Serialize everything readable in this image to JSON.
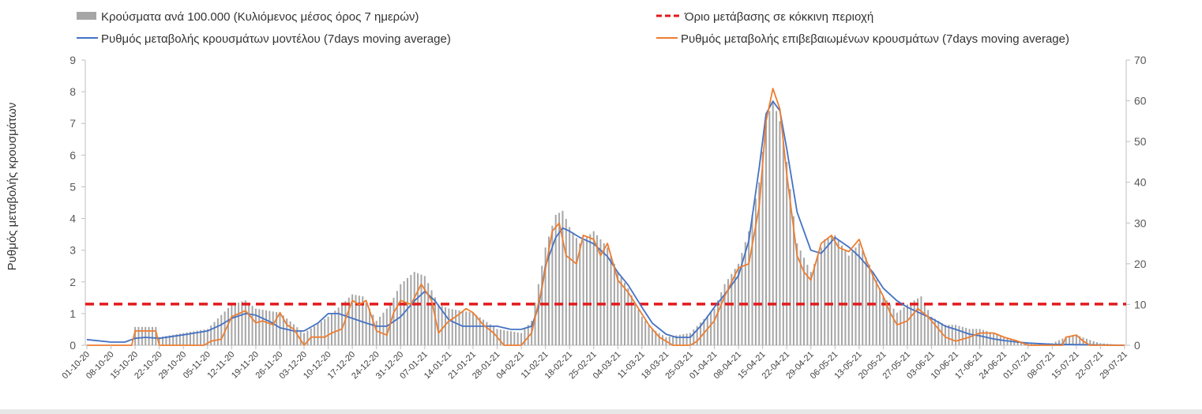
{
  "chart_data": {
    "type": "bar+line",
    "title": "",
    "ylabel_left": "Ρυθμός μεταβολής κρουσμάτων",
    "ylabel_right": "",
    "ylim_left": [
      0,
      9
    ],
    "ylim_right": [
      0,
      70
    ],
    "yticks_left": [
      "0",
      "1",
      "2",
      "3",
      "4",
      "5",
      "6",
      "7",
      "8",
      "9"
    ],
    "yticks_right": [
      "0",
      "10",
      "20",
      "30",
      "40",
      "50",
      "60",
      "70"
    ],
    "x_range": [
      "01-10-20",
      "29-07-21"
    ],
    "xticks": [
      "01-10-20",
      "08-10-20",
      "15-10-20",
      "22-10-20",
      "29-10-20",
      "05-11-20",
      "12-11-20",
      "19-11-20",
      "26-11-20",
      "03-12-20",
      "10-12-20",
      "17-12-20",
      "24-12-20",
      "31-12-20",
      "07-01-21",
      "14-01-21",
      "21-01-21",
      "28-01-21",
      "04-02-21",
      "11-02-21",
      "18-02-21",
      "25-02-21",
      "04-03-21",
      "11-03-21",
      "18-03-21",
      "25-03-21",
      "01-04-21",
      "08-04-21",
      "15-04-21",
      "22-04-21",
      "29-04-21",
      "06-05-21",
      "13-05-21",
      "20-05-21",
      "27-05-21",
      "03-06-21",
      "10-06-21",
      "17-06-21",
      "24-06-21",
      "01-07-21",
      "08-07-21",
      "15-07-21",
      "22-07-21",
      "29-07-21"
    ],
    "legend_position": "top",
    "grid": false,
    "series": [
      {
        "name": "Κρούσματα ανά 100.000 (Κυλιόμενος μέσος όρος 7 ημερών)",
        "kind": "bar",
        "axis": "right",
        "color": "#a6a6a6",
        "points": [
          [
            "01-10-20",
            0
          ],
          [
            "08-10-20",
            0
          ],
          [
            "14-10-20",
            0
          ],
          [
            "15-10-20",
            4.5
          ],
          [
            "21-10-20",
            4.5
          ],
          [
            "22-10-20",
            2
          ],
          [
            "29-10-20",
            3
          ],
          [
            "05-11-20",
            4
          ],
          [
            "12-11-20",
            10
          ],
          [
            "16-11-20",
            11
          ],
          [
            "19-11-20",
            9
          ],
          [
            "26-11-20",
            8
          ],
          [
            "03-12-20",
            3
          ],
          [
            "10-12-20",
            7
          ],
          [
            "14-12-20",
            10
          ],
          [
            "17-12-20",
            12.5
          ],
          [
            "20-12-20",
            12
          ],
          [
            "24-12-20",
            6
          ],
          [
            "28-12-20",
            10
          ],
          [
            "31-12-20",
            15
          ],
          [
            "04-01-21",
            18
          ],
          [
            "07-01-21",
            17
          ],
          [
            "11-01-21",
            10
          ],
          [
            "14-01-21",
            9
          ],
          [
            "21-01-21",
            8
          ],
          [
            "28-01-21",
            4
          ],
          [
            "04-02-21",
            3
          ],
          [
            "07-02-21",
            6
          ],
          [
            "11-02-21",
            24
          ],
          [
            "14-02-21",
            32
          ],
          [
            "16-02-21",
            33
          ],
          [
            "18-02-21",
            29
          ],
          [
            "21-02-21",
            25
          ],
          [
            "25-02-21",
            28
          ],
          [
            "01-03-21",
            24
          ],
          [
            "04-03-21",
            18
          ],
          [
            "07-03-21",
            14
          ],
          [
            "11-03-21",
            7
          ],
          [
            "14-03-21",
            4
          ],
          [
            "18-03-21",
            2
          ],
          [
            "25-03-21",
            3
          ],
          [
            "01-04-21",
            9
          ],
          [
            "04-04-21",
            15
          ],
          [
            "08-04-21",
            20
          ],
          [
            "11-04-21",
            28
          ],
          [
            "14-04-21",
            40
          ],
          [
            "16-04-21",
            55
          ],
          [
            "18-04-21",
            60
          ],
          [
            "20-04-21",
            55
          ],
          [
            "22-04-21",
            45
          ],
          [
            "25-04-21",
            25
          ],
          [
            "29-04-21",
            18
          ],
          [
            "03-05-21",
            26
          ],
          [
            "06-05-21",
            27
          ],
          [
            "10-05-21",
            22
          ],
          [
            "13-05-21",
            25
          ],
          [
            "17-05-21",
            18
          ],
          [
            "20-05-21",
            12
          ],
          [
            "24-05-21",
            8
          ],
          [
            "27-05-21",
            10
          ],
          [
            "31-05-21",
            12
          ],
          [
            "03-06-21",
            7
          ],
          [
            "07-06-21",
            5
          ],
          [
            "10-06-21",
            5
          ],
          [
            "14-06-21",
            4
          ],
          [
            "17-06-21",
            4
          ],
          [
            "21-06-21",
            3
          ],
          [
            "24-06-21",
            2
          ],
          [
            "01-07-21",
            0.5
          ],
          [
            "08-07-21",
            0.5
          ],
          [
            "12-07-21",
            2
          ],
          [
            "15-07-21",
            2.5
          ],
          [
            "20-07-21",
            1
          ],
          [
            "22-07-21",
            0.5
          ],
          [
            "29-07-21",
            0
          ]
        ]
      },
      {
        "name": "Όριο μετάβασης σε κόκκινη περιοχή",
        "kind": "hline",
        "axis": "left",
        "color": "#e31a1c",
        "value": 1.3
      },
      {
        "name": "Ρυθμός μεταβολής κρουσμάτων μοντέλου (7days moving average)",
        "kind": "line",
        "axis": "left",
        "color": "#4472c4",
        "points": [
          [
            "01-10-20",
            0.18
          ],
          [
            "08-10-20",
            0.1
          ],
          [
            "12-10-20",
            0.1
          ],
          [
            "15-10-20",
            0.22
          ],
          [
            "18-10-20",
            0.25
          ],
          [
            "22-10-20",
            0.22
          ],
          [
            "29-10-20",
            0.33
          ],
          [
            "02-11-20",
            0.4
          ],
          [
            "05-11-20",
            0.45
          ],
          [
            "09-11-20",
            0.65
          ],
          [
            "12-11-20",
            0.85
          ],
          [
            "16-11-20",
            1.0
          ],
          [
            "19-11-20",
            0.95
          ],
          [
            "23-11-20",
            0.75
          ],
          [
            "26-11-20",
            0.55
          ],
          [
            "30-11-20",
            0.45
          ],
          [
            "03-12-20",
            0.45
          ],
          [
            "07-12-20",
            0.7
          ],
          [
            "10-12-20",
            1.0
          ],
          [
            "13-12-20",
            1.0
          ],
          [
            "17-12-20",
            0.85
          ],
          [
            "21-12-20",
            0.7
          ],
          [
            "24-12-20",
            0.6
          ],
          [
            "27-12-20",
            0.6
          ],
          [
            "31-12-20",
            0.9
          ],
          [
            "04-01-21",
            1.4
          ],
          [
            "07-01-21",
            1.7
          ],
          [
            "10-01-21",
            1.4
          ],
          [
            "14-01-21",
            0.8
          ],
          [
            "18-01-21",
            0.6
          ],
          [
            "21-01-21",
            0.6
          ],
          [
            "25-01-21",
            0.6
          ],
          [
            "28-01-21",
            0.6
          ],
          [
            "01-02-21",
            0.5
          ],
          [
            "04-02-21",
            0.5
          ],
          [
            "07-02-21",
            0.6
          ],
          [
            "09-02-21",
            1.2
          ],
          [
            "11-02-21",
            2.5
          ],
          [
            "14-02-21",
            3.4
          ],
          [
            "16-02-21",
            3.7
          ],
          [
            "18-02-21",
            3.6
          ],
          [
            "21-02-21",
            3.4
          ],
          [
            "25-02-21",
            3.2
          ],
          [
            "01-03-21",
            2.8
          ],
          [
            "04-03-21",
            2.3
          ],
          [
            "07-03-21",
            1.9
          ],
          [
            "11-03-21",
            1.2
          ],
          [
            "14-03-21",
            0.7
          ],
          [
            "18-03-21",
            0.35
          ],
          [
            "21-03-21",
            0.25
          ],
          [
            "25-03-21",
            0.25
          ],
          [
            "28-03-21",
            0.6
          ],
          [
            "01-04-21",
            1.2
          ],
          [
            "04-04-21",
            1.6
          ],
          [
            "08-04-21",
            2.2
          ],
          [
            "11-04-21",
            3.3
          ],
          [
            "14-04-21",
            5.6
          ],
          [
            "16-04-21",
            7.3
          ],
          [
            "18-04-21",
            7.7
          ],
          [
            "20-04-21",
            7.4
          ],
          [
            "22-04-21",
            6.2
          ],
          [
            "25-04-21",
            4.2
          ],
          [
            "29-04-21",
            3.0
          ],
          [
            "02-05-21",
            2.9
          ],
          [
            "06-05-21",
            3.4
          ],
          [
            "10-05-21",
            3.1
          ],
          [
            "13-05-21",
            2.8
          ],
          [
            "17-05-21",
            2.3
          ],
          [
            "20-05-21",
            1.8
          ],
          [
            "24-05-21",
            1.4
          ],
          [
            "27-05-21",
            1.2
          ],
          [
            "31-05-21",
            1.0
          ],
          [
            "03-06-21",
            0.85
          ],
          [
            "07-06-21",
            0.6
          ],
          [
            "10-06-21",
            0.5
          ],
          [
            "14-06-21",
            0.35
          ],
          [
            "17-06-21",
            0.3
          ],
          [
            "21-06-21",
            0.2
          ],
          [
            "24-06-21",
            0.15
          ],
          [
            "28-06-21",
            0.1
          ],
          [
            "01-07-21",
            0.07
          ],
          [
            "08-07-21",
            0.03
          ],
          [
            "15-07-21",
            0.02
          ],
          [
            "22-07-21",
            0.01
          ],
          [
            "29-07-21",
            0.0
          ]
        ]
      },
      {
        "name": "Ρυθμός μεταβολής επιβεβαιωμένων κρουσμάτων (7days moving average)",
        "kind": "line",
        "axis": "right",
        "color": "#ed7d31",
        "points": [
          [
            "01-10-20",
            0
          ],
          [
            "14-10-20",
            0
          ],
          [
            "15-10-20",
            3.5
          ],
          [
            "21-10-20",
            3.5
          ],
          [
            "22-10-20",
            0
          ],
          [
            "04-11-20",
            0
          ],
          [
            "06-11-20",
            1
          ],
          [
            "09-11-20",
            1.5
          ],
          [
            "12-11-20",
            7
          ],
          [
            "16-11-20",
            8.5
          ],
          [
            "19-11-20",
            5.5
          ],
          [
            "21-11-20",
            6
          ],
          [
            "24-11-20",
            5
          ],
          [
            "26-11-20",
            8
          ],
          [
            "28-11-20",
            5
          ],
          [
            "30-11-20",
            4
          ],
          [
            "03-12-20",
            0
          ],
          [
            "05-12-20",
            2
          ],
          [
            "09-12-20",
            2
          ],
          [
            "11-12-20",
            3
          ],
          [
            "14-12-20",
            4
          ],
          [
            "17-12-20",
            11
          ],
          [
            "19-12-20",
            10
          ],
          [
            "21-12-20",
            11
          ],
          [
            "24-12-20",
            3.5
          ],
          [
            "27-12-20",
            2.5
          ],
          [
            "29-12-20",
            8
          ],
          [
            "31-12-20",
            11
          ],
          [
            "03-01-21",
            10
          ],
          [
            "06-01-21",
            15
          ],
          [
            "09-01-21",
            11
          ],
          [
            "11-01-21",
            3
          ],
          [
            "14-01-21",
            6
          ],
          [
            "16-01-21",
            7
          ],
          [
            "19-01-21",
            9
          ],
          [
            "21-01-21",
            8
          ],
          [
            "24-01-21",
            5
          ],
          [
            "27-01-21",
            3
          ],
          [
            "30-01-21",
            0
          ],
          [
            "04-02-21",
            0
          ],
          [
            "07-02-21",
            3
          ],
          [
            "10-02-21",
            14
          ],
          [
            "13-02-21",
            28
          ],
          [
            "15-02-21",
            30
          ],
          [
            "17-02-21",
            22
          ],
          [
            "20-02-21",
            20
          ],
          [
            "22-02-21",
            27
          ],
          [
            "25-02-21",
            26
          ],
          [
            "27-02-21",
            22
          ],
          [
            "01-03-21",
            25
          ],
          [
            "04-03-21",
            16
          ],
          [
            "07-03-21",
            13
          ],
          [
            "10-03-21",
            9
          ],
          [
            "13-03-21",
            5
          ],
          [
            "16-03-21",
            2
          ],
          [
            "20-03-21",
            0
          ],
          [
            "25-03-21",
            0
          ],
          [
            "27-03-21",
            1
          ],
          [
            "01-04-21",
            6
          ],
          [
            "04-04-21",
            12
          ],
          [
            "08-04-21",
            19
          ],
          [
            "11-04-21",
            20
          ],
          [
            "14-04-21",
            34
          ],
          [
            "16-04-21",
            55
          ],
          [
            "18-04-21",
            63
          ],
          [
            "20-04-21",
            58
          ],
          [
            "22-04-21",
            42
          ],
          [
            "25-04-21",
            22
          ],
          [
            "27-04-21",
            18
          ],
          [
            "29-04-21",
            16
          ],
          [
            "02-05-21",
            25
          ],
          [
            "05-05-21",
            27
          ],
          [
            "07-05-21",
            24
          ],
          [
            "10-05-21",
            23
          ],
          [
            "13-05-21",
            26
          ],
          [
            "15-05-21",
            21
          ],
          [
            "17-05-21",
            17
          ],
          [
            "20-05-21",
            12
          ],
          [
            "22-05-21",
            8
          ],
          [
            "24-05-21",
            5
          ],
          [
            "27-05-21",
            6
          ],
          [
            "30-05-21",
            9
          ],
          [
            "02-06-21",
            7
          ],
          [
            "04-06-21",
            5
          ],
          [
            "07-06-21",
            2
          ],
          [
            "10-06-21",
            1
          ],
          [
            "14-06-21",
            2
          ],
          [
            "17-06-21",
            3
          ],
          [
            "21-06-21",
            3
          ],
          [
            "24-06-21",
            2
          ],
          [
            "28-06-21",
            1
          ],
          [
            "01-07-21",
            0
          ],
          [
            "11-07-21",
            0
          ],
          [
            "12-07-21",
            2
          ],
          [
            "15-07-21",
            2.5
          ],
          [
            "17-07-21",
            1
          ],
          [
            "19-07-21",
            0
          ],
          [
            "29-07-21",
            0
          ]
        ]
      }
    ]
  }
}
